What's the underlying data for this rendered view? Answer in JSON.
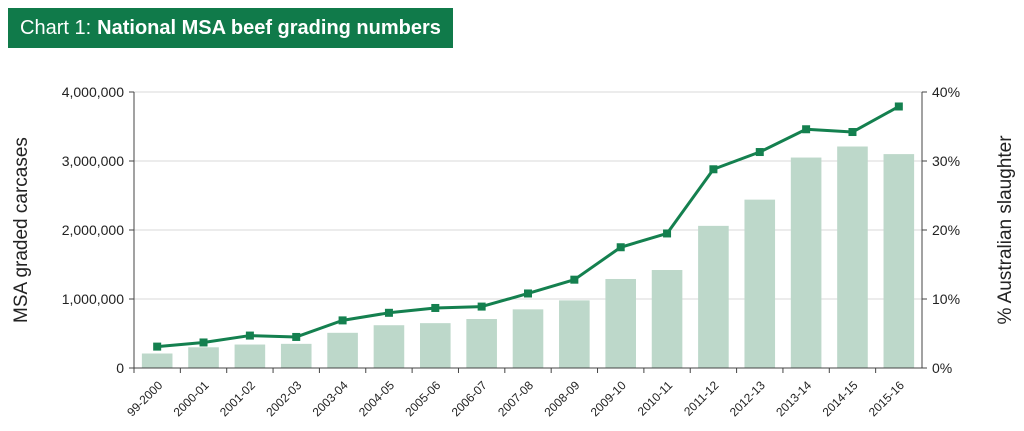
{
  "title": {
    "prefix": "Chart 1:",
    "main": "National MSA beef grading numbers"
  },
  "colors": {
    "title_bg": "#107a4a",
    "bar": "#bdd8ca",
    "line": "#14804f",
    "grid": "#d9d9d9"
  },
  "chart_data": {
    "type": "bar",
    "categories": [
      "99-2000",
      "2000-01",
      "2001-02",
      "2002-03",
      "2003-04",
      "2004-05",
      "2005-06",
      "2006-07",
      "2007-08",
      "2008-09",
      "2009-10",
      "2010-11",
      "2011-12",
      "2012-13",
      "2013-14",
      "2014-15",
      "2015-16"
    ],
    "series": [
      {
        "type": "bar",
        "axis": "left",
        "values": [
          210000,
          300000,
          340000,
          350000,
          510000,
          620000,
          650000,
          710000,
          850000,
          980000,
          1290000,
          1420000,
          2060000,
          2440000,
          3050000,
          3210000,
          3100000
        ]
      },
      {
        "type": "line",
        "axis": "right",
        "values": [
          3.1,
          3.7,
          4.7,
          4.5,
          6.9,
          8.0,
          8.7,
          8.9,
          10.8,
          12.8,
          17.5,
          19.5,
          28.8,
          31.3,
          34.6,
          34.2,
          37.9
        ]
      }
    ],
    "ylabel": "MSA graded carcases",
    "y2label": "% Australian slaughter",
    "ylim": [
      0,
      4000000
    ],
    "y2lim": [
      0,
      40
    ],
    "yticks": [
      "0",
      "1,000,000",
      "2,000,000",
      "3,000,000",
      "4,000,000"
    ],
    "y2ticks": [
      "0%",
      "10%",
      "20%",
      "30%",
      "40%"
    ],
    "grid": true,
    "legend": "none"
  }
}
